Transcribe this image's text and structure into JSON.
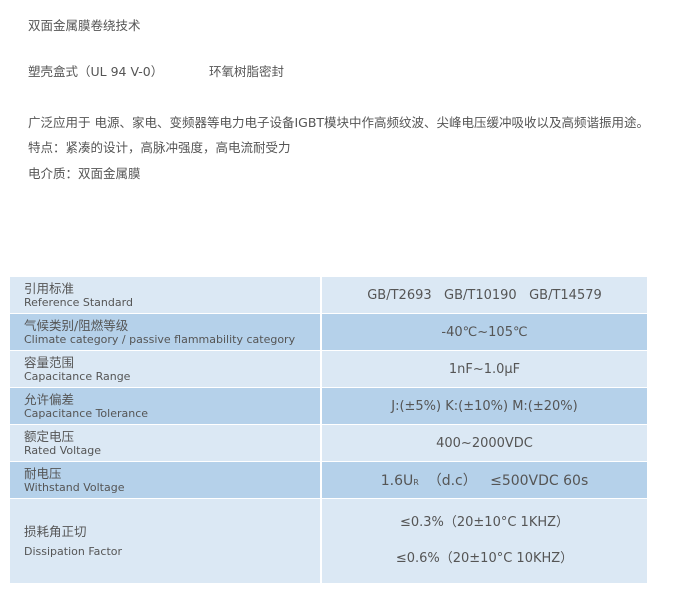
{
  "intro": {
    "line1": "双面金属膜卷绕技术",
    "line2a": "塑壳盒式（UL  94  V-0）",
    "line2b": "环氧树脂密封",
    "line3": "广泛应用于 电源、家电、变频器等电力电子设备IGBT模块中作高频纹波、尖峰电压缓冲吸收以及高频谐振用途。",
    "line4": "特点：紧凑的设计，高脉冲强度，高电流耐受力",
    "line5": "电介质：双面金属膜"
  },
  "rows": [
    {
      "zh": "引用标准",
      "en": "Reference Standard",
      "value": "GB/T2693   GB/T10190   GB/T14579"
    },
    {
      "zh": "气候类别/阻燃等级",
      "en": "Climate category / passive flammability category",
      "value": "-40℃~105℃"
    },
    {
      "zh": "容量范围",
      "en": "Capacitance Range",
      "value": "1nF~1.0μF"
    },
    {
      "zh": "允许偏差",
      "en": "Capacitance Tolerance",
      "value": "J:(±5%) K:(±10%) M:(±20%)"
    },
    {
      "zh": "额定电压",
      "en": "Rated Voltage",
      "value": "400~2000VDC"
    },
    {
      "zh": "耐电压",
      "en": "Withstand Voltage",
      "value_main": "1.6U",
      "value_sub": "R",
      "value_rest": "  （d.c）   ≤500VDC 60s"
    },
    {
      "zh": "损耗角正切",
      "en": "Dissipation Factor",
      "value1": "≤0.3%（20±10°C 1KHZ）",
      "value2": "≤0.6%（20±10°C 10KHZ）"
    }
  ]
}
